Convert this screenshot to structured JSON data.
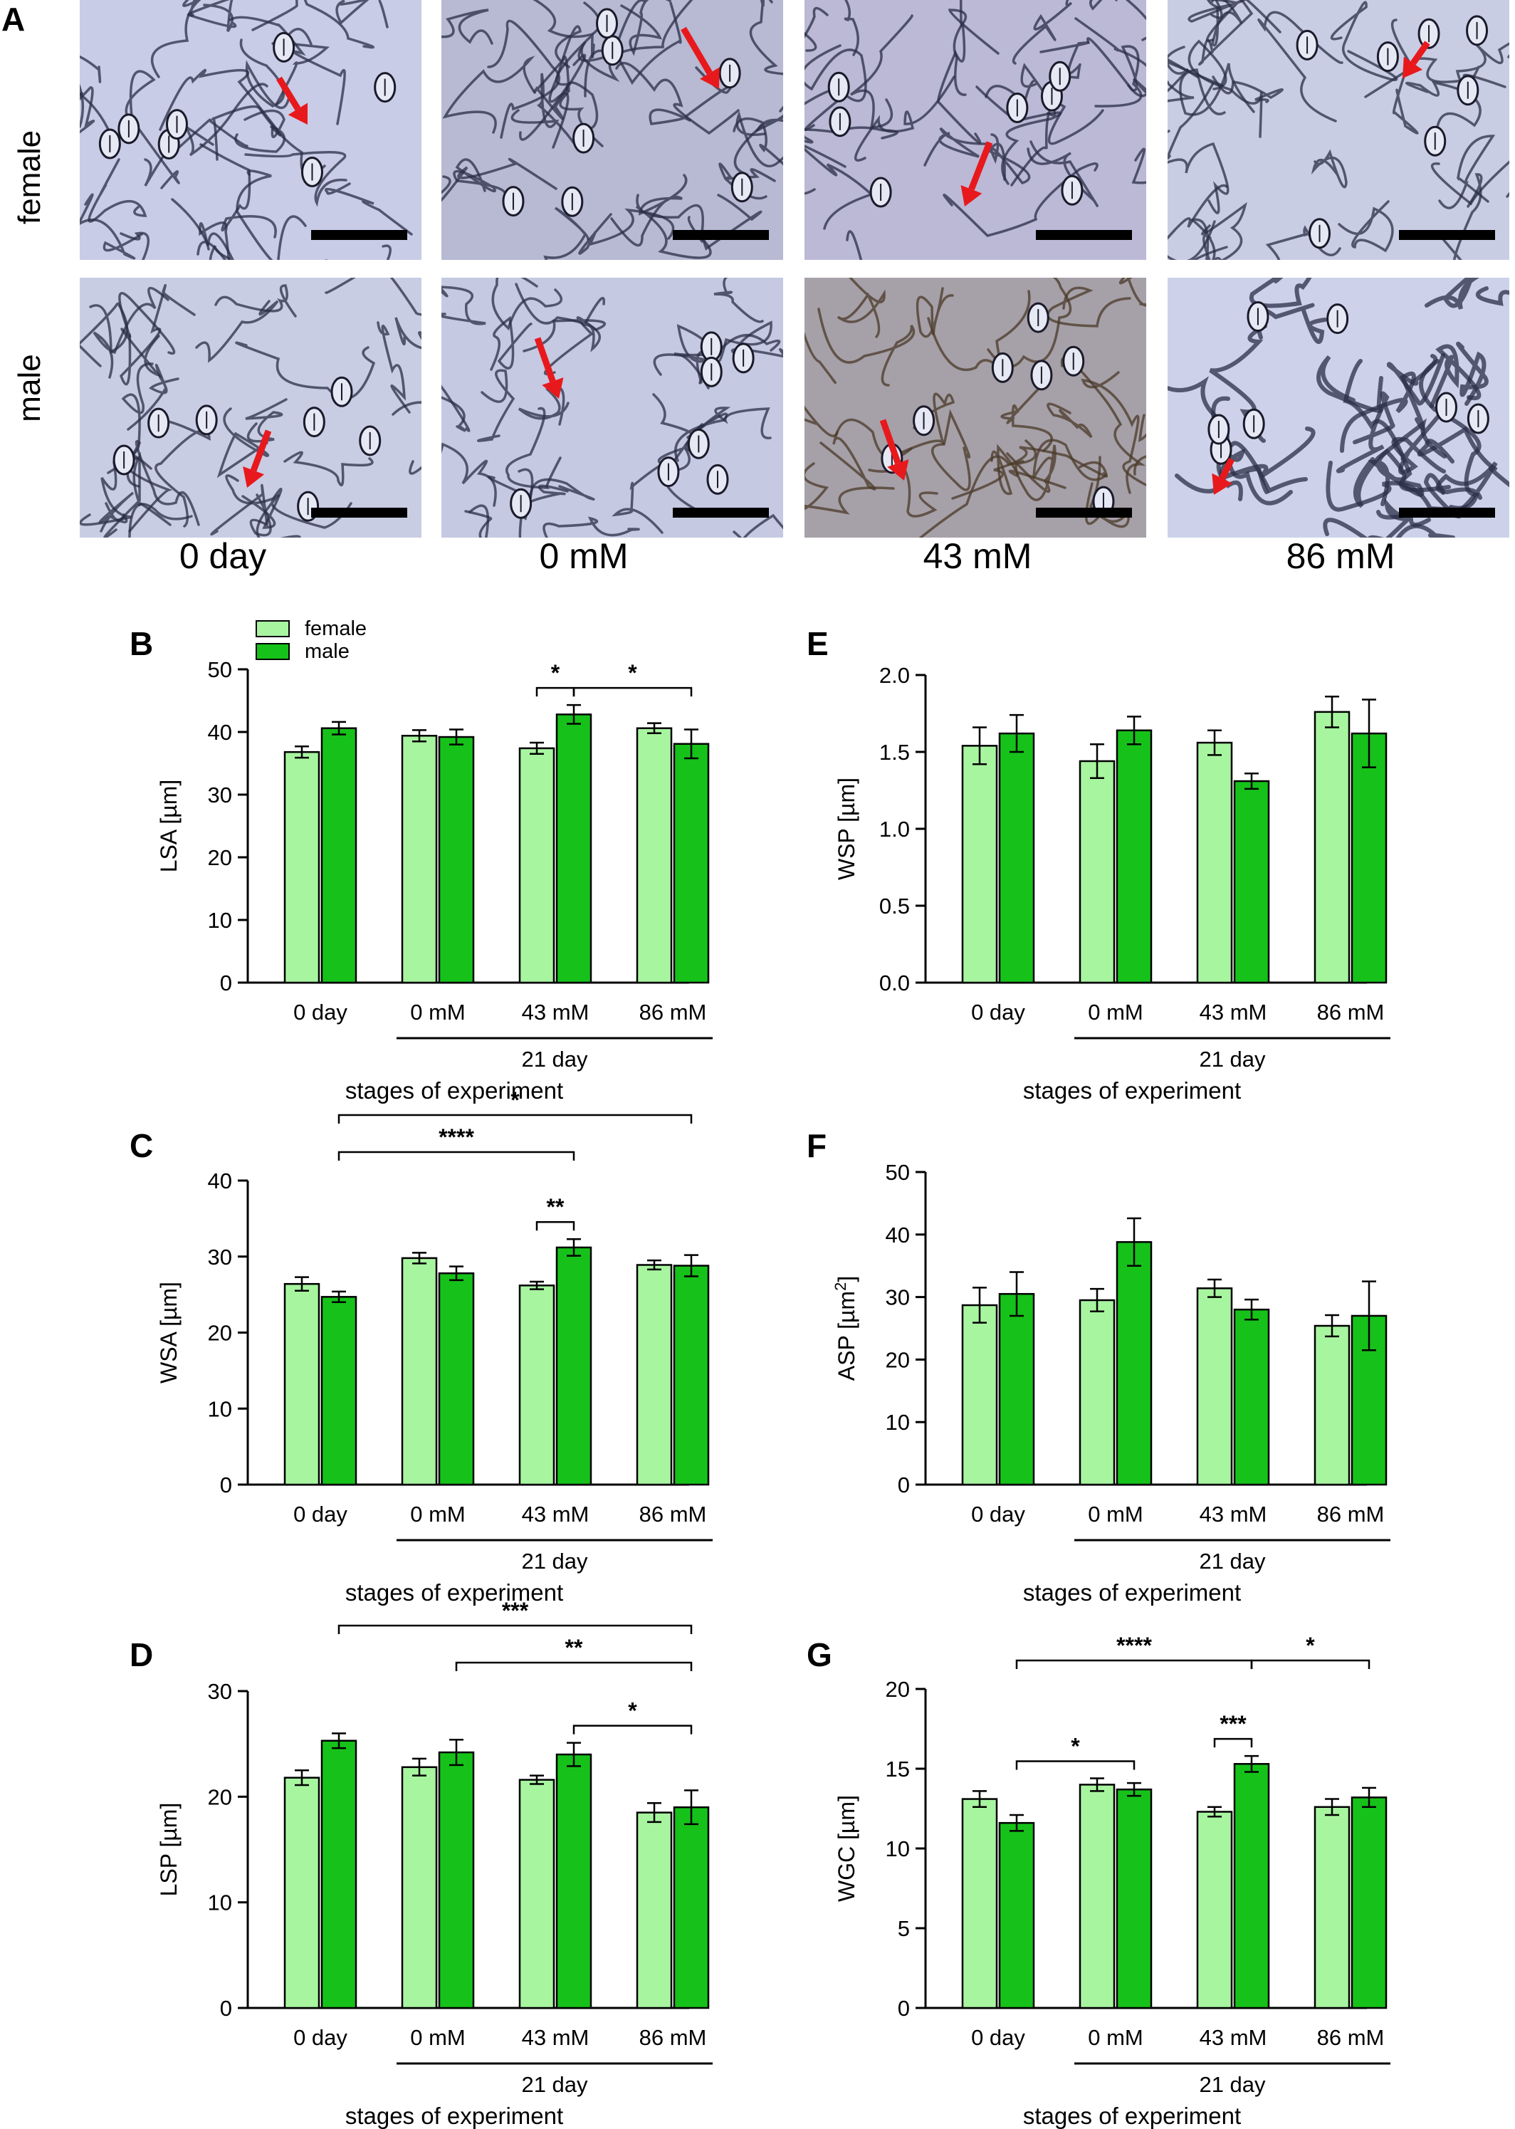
{
  "panelA": {
    "letter": "A",
    "rows": [
      {
        "label": "female",
        "tone": [
          "#c8cce6",
          "#b8b9d2",
          "#bbb9d6",
          "#c9cde4"
        ]
      },
      {
        "label": "male",
        "tone": [
          "#c9cde4",
          "#c5c9e2",
          "#a6a0a8",
          "#cdd2ea"
        ]
      }
    ],
    "columns": [
      "0 day",
      "0 mM",
      "43 mM",
      "86 mM"
    ],
    "arrow_color": "#e8191c",
    "scale_bar_color": "#000000"
  },
  "colors": {
    "female": "#a8f5a0",
    "male": "#16c21a",
    "axis": "#000000"
  },
  "legend": {
    "female": "female",
    "male": "male"
  },
  "chart_data": [
    {
      "id": "B",
      "letter": "B",
      "type": "bar",
      "categories": [
        "0 day",
        "0 mM",
        "43 mM",
        "86 mM"
      ],
      "series": [
        {
          "name": "female",
          "values": [
            36.8,
            39.4,
            37.4,
            40.6
          ],
          "errors": [
            0.9,
            0.9,
            0.9,
            0.8
          ]
        },
        {
          "name": "male",
          "values": [
            40.6,
            39.2,
            42.8,
            38.1
          ],
          "errors": [
            1.0,
            1.2,
            1.5,
            2.3
          ]
        }
      ],
      "ylabel": "LSA [µm]",
      "ylim": [
        0,
        50
      ],
      "yticks": [
        0,
        10,
        20,
        30,
        40,
        50
      ],
      "group_label": "21 day",
      "xlabel": "stages of experiment",
      "significance": [
        {
          "from": [
            2,
            0
          ],
          "to": [
            2,
            1
          ],
          "label": "*",
          "level": 0
        },
        {
          "from": [
            2,
            1
          ],
          "to": [
            3,
            1
          ],
          "label": "*",
          "level": 0
        }
      ]
    },
    {
      "id": "E",
      "letter": "E",
      "type": "bar",
      "categories": [
        "0 day",
        "0 mM",
        "43 mM",
        "86 mM"
      ],
      "series": [
        {
          "name": "female",
          "values": [
            1.54,
            1.44,
            1.56,
            1.76
          ],
          "errors": [
            0.12,
            0.11,
            0.08,
            0.1
          ]
        },
        {
          "name": "male",
          "values": [
            1.62,
            1.64,
            1.31,
            1.62
          ],
          "errors": [
            0.12,
            0.09,
            0.05,
            0.22
          ]
        }
      ],
      "ylabel": "WSP [µm]",
      "ylim": [
        0,
        2
      ],
      "yticks": [
        "0.0",
        "0.5",
        "1.0",
        "1.5",
        "2.0"
      ],
      "group_label": "21 day",
      "xlabel": "stages of experiment",
      "significance": []
    },
    {
      "id": "C",
      "letter": "C",
      "type": "bar",
      "categories": [
        "0 day",
        "0 mM",
        "43 mM",
        "86 mM"
      ],
      "series": [
        {
          "name": "female",
          "values": [
            26.4,
            29.8,
            26.2,
            28.9
          ],
          "errors": [
            0.9,
            0.7,
            0.5,
            0.6
          ]
        },
        {
          "name": "male",
          "values": [
            24.7,
            27.8,
            31.2,
            28.8
          ],
          "errors": [
            0.7,
            0.9,
            1.1,
            1.4
          ]
        }
      ],
      "ylabel": "WSA [µm]",
      "ylim": [
        0,
        40
      ],
      "yticks": [
        0,
        10,
        20,
        30,
        40
      ],
      "group_label": "21 day",
      "xlabel": "stages of experiment",
      "significance": [
        {
          "from": [
            2,
            0
          ],
          "to": [
            2,
            1
          ],
          "label": "**",
          "level": 0
        },
        {
          "from": [
            0,
            1
          ],
          "to": [
            2,
            1
          ],
          "label": "****",
          "level": 1
        },
        {
          "from": [
            0,
            1
          ],
          "to": [
            3,
            1
          ],
          "label": "*",
          "level": 2
        }
      ]
    },
    {
      "id": "F",
      "letter": "F",
      "type": "bar",
      "categories": [
        "0 day",
        "0 mM",
        "43 mM",
        "86 mM"
      ],
      "series": [
        {
          "name": "female",
          "values": [
            28.7,
            29.5,
            31.4,
            25.4
          ],
          "errors": [
            2.8,
            1.8,
            1.4,
            1.7
          ]
        },
        {
          "name": "male",
          "values": [
            30.5,
            38.8,
            28.0,
            27.0
          ],
          "errors": [
            3.5,
            3.8,
            1.6,
            5.5
          ]
        }
      ],
      "ylabel": "ASP [µm²]",
      "ylim": [
        0,
        50
      ],
      "yticks": [
        0,
        10,
        20,
        30,
        40,
        50
      ],
      "group_label": "21 day",
      "xlabel": "stages of experiment",
      "significance": []
    },
    {
      "id": "D",
      "letter": "D",
      "type": "bar",
      "categories": [
        "0 day",
        "0 mM",
        "43 mM",
        "86 mM"
      ],
      "series": [
        {
          "name": "female",
          "values": [
            21.8,
            22.8,
            21.6,
            18.5
          ],
          "errors": [
            0.7,
            0.8,
            0.4,
            0.9
          ]
        },
        {
          "name": "male",
          "values": [
            25.3,
            24.2,
            24.0,
            19.0
          ],
          "errors": [
            0.7,
            1.2,
            1.1,
            1.6
          ]
        }
      ],
      "ylabel": "LSP [µm]",
      "ylim": [
        0,
        30
      ],
      "yticks": [
        0,
        10,
        20,
        30
      ],
      "group_label": "21 day",
      "xlabel": "stages of experiment",
      "significance": [
        {
          "from": [
            2,
            1
          ],
          "to": [
            3,
            1
          ],
          "label": "*",
          "level": 0
        },
        {
          "from": [
            1,
            1
          ],
          "to": [
            3,
            1
          ],
          "label": "**",
          "level": 1
        },
        {
          "from": [
            0,
            1
          ],
          "to": [
            3,
            1
          ],
          "label": "***",
          "level": 2
        }
      ]
    },
    {
      "id": "G",
      "letter": "G",
      "type": "bar",
      "categories": [
        "0 day",
        "0 mM",
        "43 mM",
        "86 mM"
      ],
      "series": [
        {
          "name": "female",
          "values": [
            13.1,
            14.0,
            12.3,
            12.6
          ],
          "errors": [
            0.5,
            0.4,
            0.3,
            0.5
          ]
        },
        {
          "name": "male",
          "values": [
            11.6,
            13.7,
            15.3,
            13.2
          ],
          "errors": [
            0.5,
            0.4,
            0.5,
            0.6
          ]
        }
      ],
      "ylabel": "WGC [µm]",
      "ylim": [
        0,
        20
      ],
      "yticks": [
        0,
        5,
        10,
        15,
        20
      ],
      "group_label": "21 day",
      "xlabel": "stages of experiment",
      "significance": [
        {
          "from": [
            0,
            1
          ],
          "to": [
            1,
            1
          ],
          "label": "*",
          "level": 0
        },
        {
          "from": [
            2,
            0
          ],
          "to": [
            2,
            1
          ],
          "label": "***",
          "level": 0
        },
        {
          "from": [
            0,
            1
          ],
          "to": [
            2,
            1
          ],
          "label": "****",
          "level": 1
        },
        {
          "from": [
            2,
            1
          ],
          "to": [
            3,
            1
          ],
          "label": "*",
          "level": 1
        }
      ]
    }
  ]
}
